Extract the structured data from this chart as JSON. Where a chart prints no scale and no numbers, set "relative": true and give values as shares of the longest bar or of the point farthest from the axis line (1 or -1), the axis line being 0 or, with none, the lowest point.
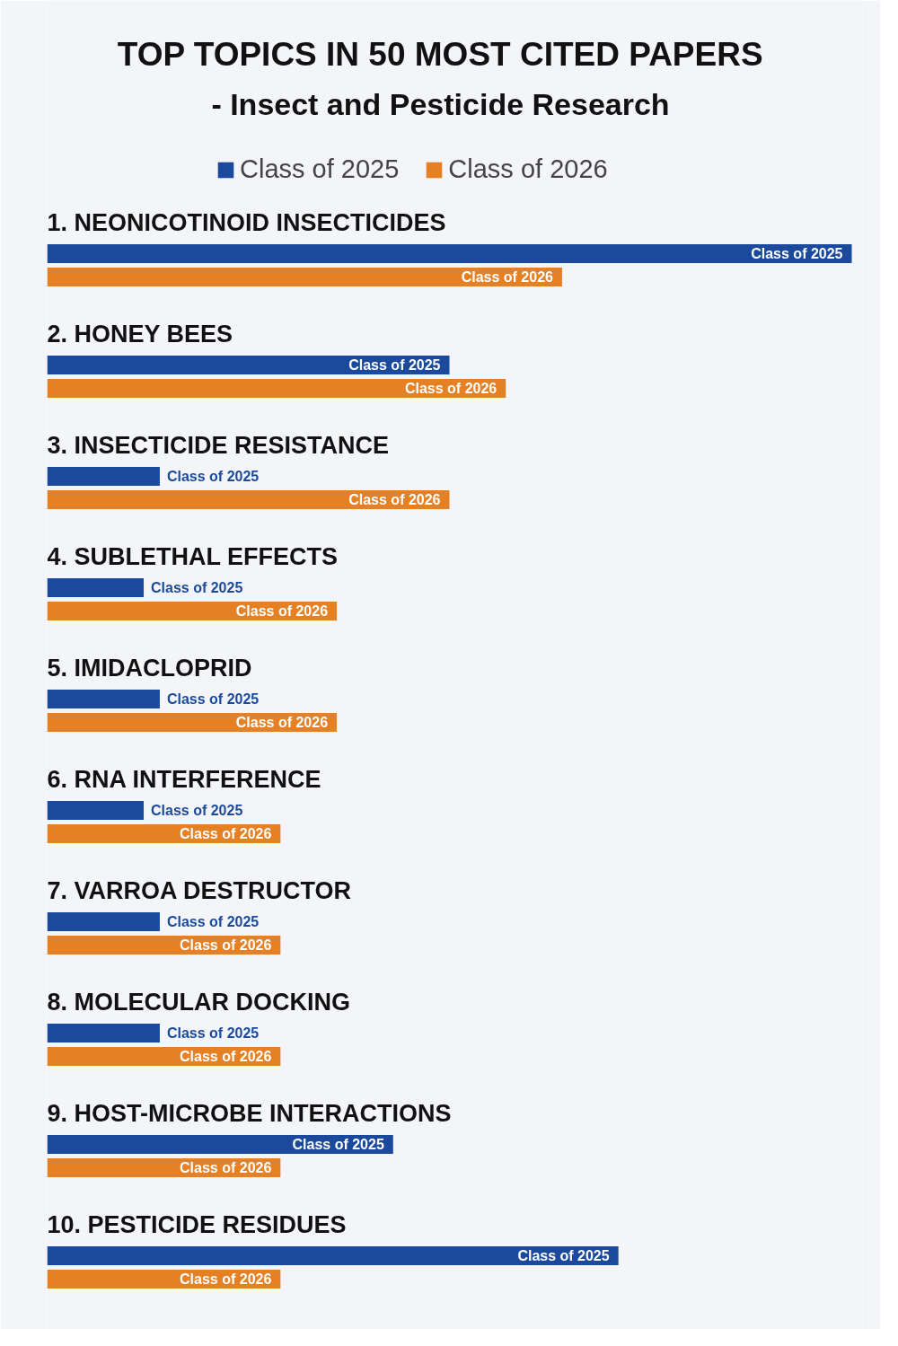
{
  "chart_data": {
    "type": "bar",
    "orientation": "horizontal",
    "relative": true,
    "legend": "top",
    "title": "TOP TOPICS IN 50 MOST CITED PAPERS",
    "subtitle": "- Insect and Pesticide Research",
    "categories": [
      "1. NEONICOTINOID INSECTICIDES",
      "2. HONEY BEES",
      "3. INSECTICIDE RESISTANCE",
      "4. SUBLETHAL EFFECTS",
      "5. IMIDACLOPRID",
      "6. RNA INTERFERENCE",
      "7. VARROA DESTRUCTOR",
      "8. MOLECULAR DOCKING",
      "9. HOST-MICROBE INTERACTIONS",
      "10. PESTICIDE RESIDUES"
    ],
    "series": [
      {
        "name": "Class of 2025",
        "color": "#1b4a9c",
        "values": [
          1.0,
          0.5,
          0.14,
          0.12,
          0.14,
          0.12,
          0.14,
          0.14,
          0.43,
          0.71
        ]
      },
      {
        "name": "Class of 2026",
        "color": "#e58024",
        "values": [
          0.64,
          0.57,
          0.5,
          0.36,
          0.36,
          0.29,
          0.29,
          0.29,
          0.29,
          0.29
        ]
      }
    ]
  }
}
